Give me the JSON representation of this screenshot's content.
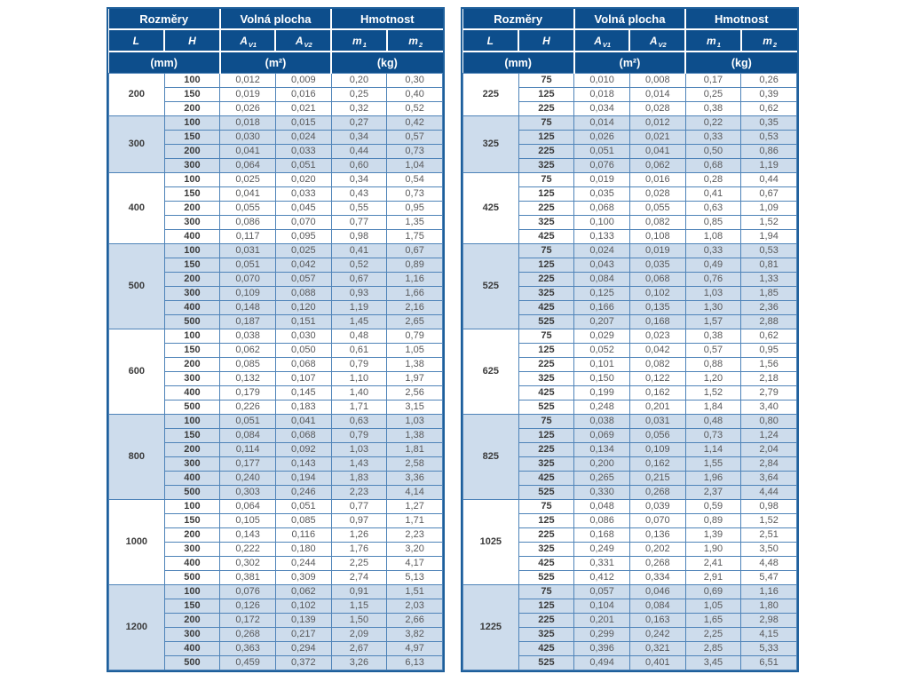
{
  "colors": {
    "header_bg": "#0d4e8c",
    "band_bg": "#cddcec",
    "border_blue": "#4e83b8",
    "outer_border": "#1e5f9b",
    "header_text": "#ffffff",
    "bold_text": "#3b3b3b",
    "value_text": "#58585a"
  },
  "header": {
    "group_dimensions": "Rozměry",
    "group_free_area": "Volná plocha",
    "group_weight": "Hmotnost",
    "col_l": "L",
    "col_h": "H",
    "col_av_base": "A",
    "col_av1_sub": "V1",
    "col_av2_sub": "V2",
    "col_m_base": "m",
    "col_m1_sub": "1",
    "col_m2_sub": "2",
    "unit_mm": "(mm)",
    "unit_m2": "(m²)",
    "unit_kg": "(kg)"
  },
  "tables": [
    {
      "groups": [
        {
          "L": "200",
          "rows": [
            [
              "100",
              "0,012",
              "0,009",
              "0,20",
              "0,30"
            ],
            [
              "150",
              "0,019",
              "0,016",
              "0,25",
              "0,40"
            ],
            [
              "200",
              "0,026",
              "0,021",
              "0,32",
              "0,52"
            ]
          ]
        },
        {
          "L": "300",
          "rows": [
            [
              "100",
              "0,018",
              "0,015",
              "0,27",
              "0,42"
            ],
            [
              "150",
              "0,030",
              "0,024",
              "0,34",
              "0,57"
            ],
            [
              "200",
              "0,041",
              "0,033",
              "0,44",
              "0,73"
            ],
            [
              "300",
              "0,064",
              "0,051",
              "0,60",
              "1,04"
            ]
          ]
        },
        {
          "L": "400",
          "rows": [
            [
              "100",
              "0,025",
              "0,020",
              "0,34",
              "0,54"
            ],
            [
              "150",
              "0,041",
              "0,033",
              "0,43",
              "0,73"
            ],
            [
              "200",
              "0,055",
              "0,045",
              "0,55",
              "0,95"
            ],
            [
              "300",
              "0,086",
              "0,070",
              "0,77",
              "1,35"
            ],
            [
              "400",
              "0,117",
              "0,095",
              "0,98",
              "1,75"
            ]
          ]
        },
        {
          "L": "500",
          "rows": [
            [
              "100",
              "0,031",
              "0,025",
              "0,41",
              "0,67"
            ],
            [
              "150",
              "0,051",
              "0,042",
              "0,52",
              "0,89"
            ],
            [
              "200",
              "0,070",
              "0,057",
              "0,67",
              "1,16"
            ],
            [
              "300",
              "0,109",
              "0,088",
              "0,93",
              "1,66"
            ],
            [
              "400",
              "0,148",
              "0,120",
              "1,19",
              "2,16"
            ],
            [
              "500",
              "0,187",
              "0,151",
              "1,45",
              "2,65"
            ]
          ]
        },
        {
          "L": "600",
          "rows": [
            [
              "100",
              "0,038",
              "0,030",
              "0,48",
              "0,79"
            ],
            [
              "150",
              "0,062",
              "0,050",
              "0,61",
              "1,05"
            ],
            [
              "200",
              "0,085",
              "0,068",
              "0,79",
              "1,38"
            ],
            [
              "300",
              "0,132",
              "0,107",
              "1,10",
              "1,97"
            ],
            [
              "400",
              "0,179",
              "0,145",
              "1,40",
              "2,56"
            ],
            [
              "500",
              "0,226",
              "0,183",
              "1,71",
              "3,15"
            ]
          ]
        },
        {
          "L": "800",
          "rows": [
            [
              "100",
              "0,051",
              "0,041",
              "0,63",
              "1,03"
            ],
            [
              "150",
              "0,084",
              "0,068",
              "0,79",
              "1,38"
            ],
            [
              "200",
              "0,114",
              "0,092",
              "1,03",
              "1,81"
            ],
            [
              "300",
              "0,177",
              "0,143",
              "1,43",
              "2,58"
            ],
            [
              "400",
              "0,240",
              "0,194",
              "1,83",
              "3,36"
            ],
            [
              "500",
              "0,303",
              "0,246",
              "2,23",
              "4,14"
            ]
          ]
        },
        {
          "L": "1000",
          "rows": [
            [
              "100",
              "0,064",
              "0,051",
              "0,77",
              "1,27"
            ],
            [
              "150",
              "0,105",
              "0,085",
              "0,97",
              "1,71"
            ],
            [
              "200",
              "0,143",
              "0,116",
              "1,26",
              "2,23"
            ],
            [
              "300",
              "0,222",
              "0,180",
              "1,76",
              "3,20"
            ],
            [
              "400",
              "0,302",
              "0,244",
              "2,25",
              "4,17"
            ],
            [
              "500",
              "0,381",
              "0,309",
              "2,74",
              "5,13"
            ]
          ]
        },
        {
          "L": "1200",
          "rows": [
            [
              "100",
              "0,076",
              "0,062",
              "0,91",
              "1,51"
            ],
            [
              "150",
              "0,126",
              "0,102",
              "1,15",
              "2,03"
            ],
            [
              "200",
              "0,172",
              "0,139",
              "1,50",
              "2,66"
            ],
            [
              "300",
              "0,268",
              "0,217",
              "2,09",
              "3,82"
            ],
            [
              "400",
              "0,363",
              "0,294",
              "2,67",
              "4,97"
            ],
            [
              "500",
              "0,459",
              "0,372",
              "3,26",
              "6,13"
            ]
          ]
        }
      ]
    },
    {
      "groups": [
        {
          "L": "225",
          "rows": [
            [
              "75",
              "0,010",
              "0,008",
              "0,17",
              "0,26"
            ],
            [
              "125",
              "0,018",
              "0,014",
              "0,25",
              "0,39"
            ],
            [
              "225",
              "0,034",
              "0,028",
              "0,38",
              "0,62"
            ]
          ]
        },
        {
          "L": "325",
          "rows": [
            [
              "75",
              "0,014",
              "0,012",
              "0,22",
              "0,35"
            ],
            [
              "125",
              "0,026",
              "0,021",
              "0,33",
              "0,53"
            ],
            [
              "225",
              "0,051",
              "0,041",
              "0,50",
              "0,86"
            ],
            [
              "325",
              "0,076",
              "0,062",
              "0,68",
              "1,19"
            ]
          ]
        },
        {
          "L": "425",
          "rows": [
            [
              "75",
              "0,019",
              "0,016",
              "0,28",
              "0,44"
            ],
            [
              "125",
              "0,035",
              "0,028",
              "0,41",
              "0,67"
            ],
            [
              "225",
              "0,068",
              "0,055",
              "0,63",
              "1,09"
            ],
            [
              "325",
              "0,100",
              "0,082",
              "0,85",
              "1,52"
            ],
            [
              "425",
              "0,133",
              "0,108",
              "1,08",
              "1,94"
            ]
          ]
        },
        {
          "L": "525",
          "rows": [
            [
              "75",
              "0,024",
              "0,019",
              "0,33",
              "0,53"
            ],
            [
              "125",
              "0,043",
              "0,035",
              "0,49",
              "0,81"
            ],
            [
              "225",
              "0,084",
              "0,068",
              "0,76",
              "1,33"
            ],
            [
              "325",
              "0,125",
              "0,102",
              "1,03",
              "1,85"
            ],
            [
              "425",
              "0,166",
              "0,135",
              "1,30",
              "2,36"
            ],
            [
              "525",
              "0,207",
              "0,168",
              "1,57",
              "2,88"
            ]
          ]
        },
        {
          "L": "625",
          "rows": [
            [
              "75",
              "0,029",
              "0,023",
              "0,38",
              "0,62"
            ],
            [
              "125",
              "0,052",
              "0,042",
              "0,57",
              "0,95"
            ],
            [
              "225",
              "0,101",
              "0,082",
              "0,88",
              "1,56"
            ],
            [
              "325",
              "0,150",
              "0,122",
              "1,20",
              "2,18"
            ],
            [
              "425",
              "0,199",
              "0,162",
              "1,52",
              "2,79"
            ],
            [
              "525",
              "0,248",
              "0,201",
              "1,84",
              "3,40"
            ]
          ]
        },
        {
          "L": "825",
          "rows": [
            [
              "75",
              "0,038",
              "0,031",
              "0,48",
              "0,80"
            ],
            [
              "125",
              "0,069",
              "0,056",
              "0,73",
              "1,24"
            ],
            [
              "225",
              "0,134",
              "0,109",
              "1,14",
              "2,04"
            ],
            [
              "325",
              "0,200",
              "0,162",
              "1,55",
              "2,84"
            ],
            [
              "425",
              "0,265",
              "0,215",
              "1,96",
              "3,64"
            ],
            [
              "525",
              "0,330",
              "0,268",
              "2,37",
              "4,44"
            ]
          ]
        },
        {
          "L": "1025",
          "rows": [
            [
              "75",
              "0,048",
              "0,039",
              "0,59",
              "0,98"
            ],
            [
              "125",
              "0,086",
              "0,070",
              "0,89",
              "1,52"
            ],
            [
              "225",
              "0,168",
              "0,136",
              "1,39",
              "2,51"
            ],
            [
              "325",
              "0,249",
              "0,202",
              "1,90",
              "3,50"
            ],
            [
              "425",
              "0,331",
              "0,268",
              "2,41",
              "4,48"
            ],
            [
              "525",
              "0,412",
              "0,334",
              "2,91",
              "5,47"
            ]
          ]
        },
        {
          "L": "1225",
          "rows": [
            [
              "75",
              "0,057",
              "0,046",
              "0,69",
              "1,16"
            ],
            [
              "125",
              "0,104",
              "0,084",
              "1,05",
              "1,80"
            ],
            [
              "225",
              "0,201",
              "0,163",
              "1,65",
              "2,98"
            ],
            [
              "325",
              "0,299",
              "0,242",
              "2,25",
              "4,15"
            ],
            [
              "425",
              "0,396",
              "0,321",
              "2,85",
              "5,33"
            ],
            [
              "525",
              "0,494",
              "0,401",
              "3,45",
              "6,51"
            ]
          ]
        }
      ]
    }
  ]
}
